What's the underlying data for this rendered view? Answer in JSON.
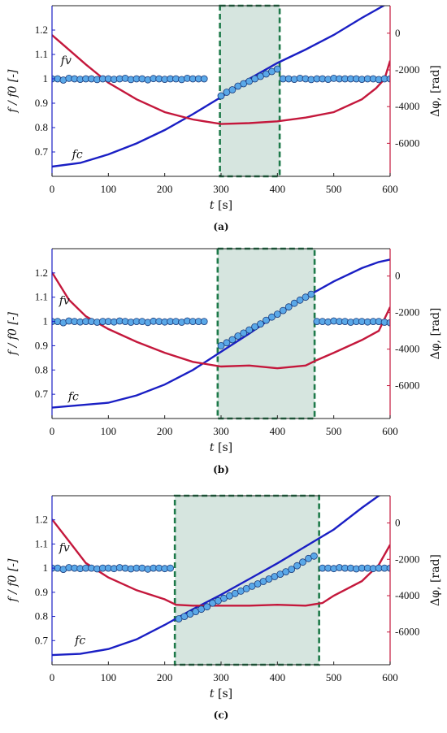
{
  "colors": {
    "fc": "#1a1fc4",
    "dphi": "#c4183c",
    "fv_fill": "#5aa8e8",
    "fv_edge": "#1a3a7a",
    "shade_fill": "#d6e5df",
    "shade_edge": "#1e7a4a",
    "right_axis": "#c4183c",
    "left_axis": "#1a1fc4"
  },
  "chart_data": [
    {
      "type": "line",
      "caption": "(a)",
      "x_label_var": "t",
      "x_label_unit": "[s]",
      "ylabel_left": "f / f0 [-]",
      "ylabel_right": "Δφ, [rad]",
      "xlim": [
        0,
        600
      ],
      "ylim_left": [
        0.6,
        1.3
      ],
      "ylim_right": [
        -7800,
        1500
      ],
      "x_ticks": [
        "0",
        "100",
        "200",
        "300",
        "400",
        "500",
        "600"
      ],
      "y_ticks_left": [
        "0.7",
        "0.8",
        "0.9",
        "1",
        "1.1",
        "1.2"
      ],
      "y_ticks_right": [
        "-6000",
        "-4000",
        "-2000",
        "0"
      ],
      "shaded_interval": [
        298,
        404
      ],
      "annotations": {
        "fv": "fv",
        "fc": "fc"
      },
      "annotation_values": {
        "fv": [
          25,
          1.06
        ],
        "fc": [
          45,
          0.675
        ]
      },
      "series": [
        {
          "name": "fc",
          "axis": "left",
          "x": [
            0,
            50,
            100,
            150,
            200,
            250,
            300,
            350,
            400,
            450,
            500,
            550,
            600
          ],
          "y": [
            0.64,
            0.655,
            0.69,
            0.735,
            0.79,
            0.855,
            0.925,
            1.0,
            1.065,
            1.12,
            1.18,
            1.25,
            1.315
          ]
        },
        {
          "name": "dphi",
          "axis": "right",
          "x": [
            0,
            30,
            60,
            100,
            150,
            200,
            250,
            300,
            350,
            400,
            450,
            500,
            550,
            575,
            590,
            600
          ],
          "y": [
            -100,
            -900,
            -1700,
            -2700,
            -3600,
            -4300,
            -4700,
            -4950,
            -4900,
            -4800,
            -4600,
            -4300,
            -3600,
            -3000,
            -2500,
            -1500
          ]
        },
        {
          "name": "fv",
          "axis": "left",
          "points": [
            [
              0,
              1.0
            ],
            [
              10,
              1.0
            ],
            [
              20,
              0.995
            ],
            [
              30,
              1.002
            ],
            [
              40,
              1.0
            ],
            [
              50,
              0.998
            ],
            [
              60,
              1.0
            ],
            [
              70,
              1.0
            ],
            [
              80,
              0.997
            ],
            [
              90,
              1.0
            ],
            [
              100,
              1.0
            ],
            [
              110,
              0.998
            ],
            [
              120,
              1.0
            ],
            [
              130,
              1.002
            ],
            [
              140,
              0.997
            ],
            [
              150,
              1.0
            ],
            [
              160,
              1.0
            ],
            [
              170,
              0.996
            ],
            [
              180,
              1.001
            ],
            [
              190,
              1.0
            ],
            [
              200,
              0.998
            ],
            [
              210,
              1.0
            ],
            [
              220,
              1.0
            ],
            [
              230,
              0.997
            ],
            [
              240,
              1.002
            ],
            [
              250,
              1.0
            ],
            [
              260,
              1.0
            ],
            [
              270,
              1.0
            ],
            [
              300,
              0.93
            ],
            [
              310,
              0.945
            ],
            [
              320,
              0.955
            ],
            [
              330,
              0.97
            ],
            [
              340,
              0.98
            ],
            [
              350,
              0.99
            ],
            [
              360,
              1.0
            ],
            [
              370,
              1.01
            ],
            [
              380,
              1.02
            ],
            [
              390,
              1.03
            ],
            [
              400,
              1.04
            ],
            [
              410,
              1.0
            ],
            [
              420,
              1.0
            ],
            [
              430,
              0.998
            ],
            [
              440,
              1.002
            ],
            [
              450,
              1.0
            ],
            [
              460,
              0.997
            ],
            [
              470,
              1.0
            ],
            [
              480,
              1.0
            ],
            [
              490,
              0.998
            ],
            [
              500,
              1.002
            ],
            [
              510,
              1.0
            ],
            [
              520,
              1.0
            ],
            [
              530,
              1.0
            ],
            [
              540,
              1.0
            ],
            [
              550,
              0.998
            ],
            [
              560,
              1.0
            ],
            [
              570,
              1.0
            ],
            [
              580,
              0.997
            ],
            [
              590,
              1.0
            ],
            [
              600,
              1.0
            ]
          ]
        }
      ]
    },
    {
      "type": "line",
      "caption": "(b)",
      "x_label_var": "t",
      "x_label_unit": "[s]",
      "ylabel_left": "f / f0 [-]",
      "ylabel_right": "Δφ, [rad]",
      "xlim": [
        0,
        600
      ],
      "ylim_left": [
        0.6,
        1.3
      ],
      "ylim_right": [
        -7800,
        1500
      ],
      "x_ticks": [
        "0",
        "100",
        "200",
        "300",
        "400",
        "500",
        "600"
      ],
      "y_ticks_left": [
        "0.7",
        "0.8",
        "0.9",
        "1",
        "1.1",
        "1.2"
      ],
      "y_ticks_right": [
        "-6000",
        "-4000",
        "-2000",
        "0"
      ],
      "shaded_interval": [
        294,
        466
      ],
      "annotations": {
        "fv": "fv",
        "fc": "fc"
      },
      "annotation_values": {
        "fv": [
          22,
          1.07
        ],
        "fc": [
          38,
          0.675
        ]
      },
      "series": [
        {
          "name": "fc",
          "axis": "left",
          "x": [
            0,
            50,
            100,
            150,
            200,
            250,
            300,
            350,
            400,
            450,
            500,
            550,
            580,
            600
          ],
          "y": [
            0.645,
            0.655,
            0.665,
            0.695,
            0.74,
            0.8,
            0.875,
            0.95,
            1.03,
            1.1,
            1.165,
            1.22,
            1.245,
            1.255
          ]
        },
        {
          "name": "dphi",
          "axis": "right",
          "x": [
            0,
            30,
            60,
            100,
            150,
            200,
            250,
            300,
            350,
            400,
            450,
            470,
            500,
            550,
            580,
            600
          ],
          "y": [
            200,
            -1300,
            -2200,
            -2900,
            -3600,
            -4200,
            -4700,
            -4950,
            -4900,
            -5050,
            -4900,
            -4600,
            -4200,
            -3500,
            -3000,
            -1700
          ]
        },
        {
          "name": "fv",
          "axis": "left",
          "points": [
            [
              0,
              1.0
            ],
            [
              10,
              1.0
            ],
            [
              20,
              0.995
            ],
            [
              30,
              1.002
            ],
            [
              40,
              1.0
            ],
            [
              50,
              0.998
            ],
            [
              60,
              1.0
            ],
            [
              70,
              1.0
            ],
            [
              80,
              0.997
            ],
            [
              90,
              1.0
            ],
            [
              100,
              1.0
            ],
            [
              110,
              0.998
            ],
            [
              120,
              1.002
            ],
            [
              130,
              1.0
            ],
            [
              140,
              0.997
            ],
            [
              150,
              1.0
            ],
            [
              160,
              1.0
            ],
            [
              170,
              0.996
            ],
            [
              180,
              1.001
            ],
            [
              190,
              1.0
            ],
            [
              200,
              0.998
            ],
            [
              210,
              1.0
            ],
            [
              220,
              1.0
            ],
            [
              230,
              0.997
            ],
            [
              240,
              1.002
            ],
            [
              250,
              1.0
            ],
            [
              260,
              1.0
            ],
            [
              270,
              1.0
            ],
            [
              300,
              0.9
            ],
            [
              310,
              0.912
            ],
            [
              320,
              0.925
            ],
            [
              330,
              0.94
            ],
            [
              340,
              0.952
            ],
            [
              350,
              0.965
            ],
            [
              360,
              0.978
            ],
            [
              370,
              0.99
            ],
            [
              380,
              1.005
            ],
            [
              390,
              1.018
            ],
            [
              400,
              1.03
            ],
            [
              410,
              1.045
            ],
            [
              420,
              1.06
            ],
            [
              430,
              1.075
            ],
            [
              440,
              1.088
            ],
            [
              450,
              1.1
            ],
            [
              460,
              1.112
            ],
            [
              470,
              1.0
            ],
            [
              480,
              1.0
            ],
            [
              490,
              0.998
            ],
            [
              500,
              1.002
            ],
            [
              510,
              1.0
            ],
            [
              520,
              1.0
            ],
            [
              530,
              0.997
            ],
            [
              540,
              1.0
            ],
            [
              550,
              1.0
            ],
            [
              560,
              0.998
            ],
            [
              570,
              1.0
            ],
            [
              580,
              1.0
            ],
            [
              590,
              0.997
            ],
            [
              600,
              0.995
            ]
          ]
        }
      ]
    },
    {
      "type": "line",
      "caption": "(c)",
      "x_label_var": "t",
      "x_label_unit": "[s]",
      "ylabel_left": "f / f0 [-]",
      "ylabel_right": "Δφ, [rad]",
      "xlim": [
        0,
        600
      ],
      "ylim_left": [
        0.6,
        1.3
      ],
      "ylim_right": [
        -7800,
        1500
      ],
      "x_ticks": [
        "0",
        "100",
        "200",
        "300",
        "400",
        "500",
        "600"
      ],
      "y_ticks_left": [
        "0.7",
        "0.8",
        "0.9",
        "1",
        "1.1",
        "1.2"
      ],
      "y_ticks_right": [
        "-6000",
        "-4000",
        "-2000",
        "0"
      ],
      "shaded_interval": [
        218,
        474
      ],
      "annotations": {
        "fv": "fv",
        "fc": "fc"
      },
      "annotation_values": {
        "fv": [
          22,
          1.07
        ],
        "fc": [
          50,
          0.685
        ]
      },
      "series": [
        {
          "name": "fc",
          "axis": "left",
          "x": [
            0,
            50,
            100,
            150,
            200,
            250,
            300,
            350,
            400,
            450,
            500,
            550,
            580,
            600
          ],
          "y": [
            0.64,
            0.645,
            0.665,
            0.705,
            0.765,
            0.83,
            0.89,
            0.955,
            1.02,
            1.09,
            1.16,
            1.25,
            1.3,
            1.32
          ]
        },
        {
          "name": "dphi",
          "axis": "right",
          "x": [
            0,
            30,
            60,
            100,
            150,
            200,
            220,
            250,
            300,
            350,
            400,
            450,
            480,
            500,
            550,
            580,
            600
          ],
          "y": [
            200,
            -1000,
            -2200,
            -3000,
            -3700,
            -4200,
            -4500,
            -4550,
            -4550,
            -4550,
            -4500,
            -4550,
            -4400,
            -4000,
            -3200,
            -2300,
            -1200
          ]
        },
        {
          "name": "fv",
          "axis": "left",
          "points": [
            [
              0,
              1.0
            ],
            [
              10,
              1.0
            ],
            [
              20,
              0.995
            ],
            [
              30,
              1.002
            ],
            [
              40,
              1.0
            ],
            [
              50,
              0.998
            ],
            [
              60,
              1.0
            ],
            [
              70,
              1.0
            ],
            [
              80,
              0.997
            ],
            [
              90,
              1.0
            ],
            [
              100,
              1.0
            ],
            [
              110,
              0.998
            ],
            [
              120,
              1.002
            ],
            [
              130,
              1.0
            ],
            [
              140,
              0.997
            ],
            [
              150,
              1.0
            ],
            [
              160,
              1.0
            ],
            [
              170,
              0.996
            ],
            [
              180,
              1.0
            ],
            [
              190,
              1.0
            ],
            [
              200,
              0.998
            ],
            [
              210,
              1.0
            ],
            [
              225,
              0.79
            ],
            [
              235,
              0.8
            ],
            [
              245,
              0.81
            ],
            [
              255,
              0.82
            ],
            [
              265,
              0.83
            ],
            [
              275,
              0.84
            ],
            [
              285,
              0.855
            ],
            [
              295,
              0.865
            ],
            [
              305,
              0.875
            ],
            [
              315,
              0.885
            ],
            [
              325,
              0.895
            ],
            [
              335,
              0.905
            ],
            [
              345,
              0.915
            ],
            [
              355,
              0.925
            ],
            [
              365,
              0.935
            ],
            [
              375,
              0.945
            ],
            [
              385,
              0.955
            ],
            [
              395,
              0.965
            ],
            [
              405,
              0.975
            ],
            [
              415,
              0.985
            ],
            [
              425,
              0.995
            ],
            [
              435,
              1.01
            ],
            [
              445,
              1.025
            ],
            [
              455,
              1.04
            ],
            [
              465,
              1.05
            ],
            [
              480,
              1.0
            ],
            [
              490,
              1.0
            ],
            [
              500,
              0.998
            ],
            [
              510,
              1.002
            ],
            [
              520,
              1.0
            ],
            [
              530,
              1.0
            ],
            [
              540,
              0.997
            ],
            [
              550,
              1.0
            ],
            [
              560,
              1.0
            ],
            [
              570,
              0.998
            ],
            [
              580,
              1.0
            ],
            [
              590,
              1.0
            ],
            [
              600,
              1.0
            ]
          ]
        }
      ]
    }
  ]
}
